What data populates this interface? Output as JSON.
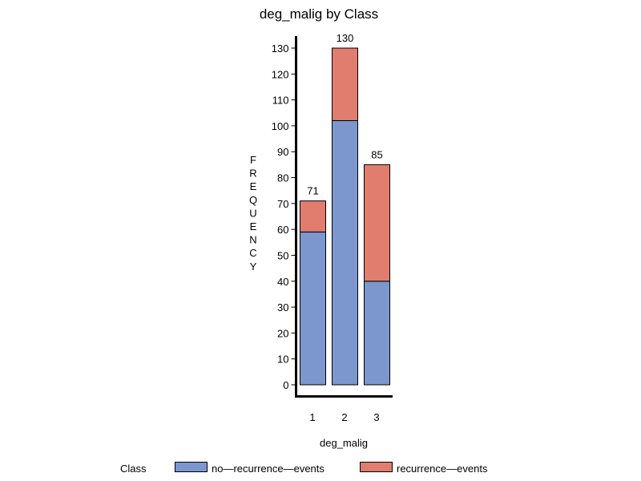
{
  "chart_data": {
    "type": "bar",
    "stacked": true,
    "title": "deg_malig by Class",
    "xlabel": "deg_malig",
    "ylabel": "FREQUENCY",
    "categories": [
      "1",
      "2",
      "3"
    ],
    "series": [
      {
        "name": "no—recurrence—events",
        "values": [
          59,
          102,
          40
        ],
        "color": "#7b97cd"
      },
      {
        "name": "recurrence—events",
        "values": [
          12,
          28,
          45
        ],
        "color": "#e07d6f"
      }
    ],
    "totals": [
      71,
      130,
      85
    ],
    "ylim": [
      0,
      130
    ],
    "yticks": [
      0,
      10,
      20,
      30,
      40,
      50,
      60,
      70,
      80,
      90,
      100,
      110,
      120,
      130
    ],
    "grid": false,
    "legend_title": "Class",
    "legend_position": "bottom"
  }
}
